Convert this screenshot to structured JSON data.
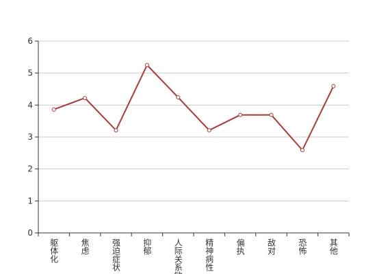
{
  "chart_data": {
    "type": "line",
    "categories": [
      "躯体化",
      "焦虑",
      "强迫症状",
      "抑郁",
      "人际关系敏感",
      "精神病性",
      "偏执",
      "敌对",
      "恐怖",
      "其他"
    ],
    "series": [
      {
        "color": "#b83434",
        "values": [
          3.86,
          4.22,
          3.21,
          5.25,
          4.24,
          3.21,
          3.69,
          3.69,
          2.59,
          4.59
        ]
      }
    ],
    "ylim": [
      0,
      6
    ],
    "yticks": [
      0,
      1,
      2,
      3,
      4,
      5,
      6
    ],
    "grid": true
  }
}
